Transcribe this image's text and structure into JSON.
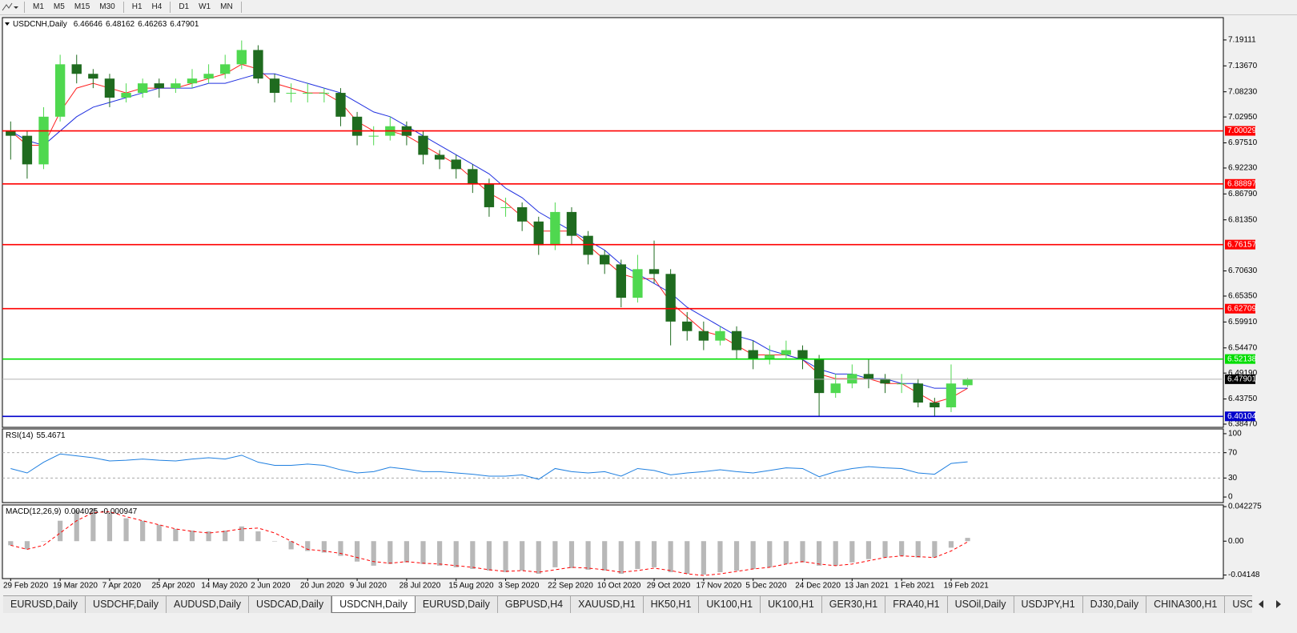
{
  "toolbar": {
    "timeframes": [
      "M1",
      "M5",
      "M15",
      "M30",
      "H1",
      "H4",
      "D1",
      "W1",
      "MN"
    ]
  },
  "chart_data": [
    {
      "type": "candlestick",
      "title": "USDCNH,Daily",
      "categories": [
        "29 Feb 2020",
        null,
        null,
        "19 Mar 2020",
        null,
        null,
        "7 Apr 2020",
        null,
        null,
        "25 Apr 2020",
        null,
        null,
        "14 May 2020",
        null,
        null,
        "2 Jun 2020",
        null,
        null,
        "20 Jun 2020",
        null,
        null,
        "9 Jul 2020",
        null,
        null,
        "28 Jul 2020",
        null,
        null,
        "15 Aug 2020",
        null,
        null,
        "3 Sep 2020",
        null,
        null,
        "22 Sep 2020",
        null,
        null,
        "10 Oct 2020",
        null,
        null,
        "29 Oct 2020",
        null,
        null,
        "17 Nov 2020",
        null,
        null,
        "5 Dec 2020",
        null,
        null,
        "24 Dec 2020",
        null,
        null,
        "13 Jan 2021",
        null,
        null,
        "1 Feb 2021",
        null,
        null,
        "19 Feb 2021",
        null
      ],
      "open": [
        7.0,
        6.99,
        6.93,
        7.03,
        7.14,
        7.12,
        7.11,
        7.07,
        7.08,
        7.1,
        7.09,
        7.1,
        7.11,
        7.12,
        7.14,
        7.17,
        7.11,
        7.08,
        7.08,
        7.08,
        7.08,
        7.03,
        6.99,
        6.99,
        7.01,
        6.99,
        6.95,
        6.94,
        6.92,
        6.89,
        6.84,
        6.84,
        6.81,
        6.76,
        6.83,
        6.78,
        6.74,
        6.72,
        6.65,
        6.71,
        6.7,
        6.6,
        6.58,
        6.56,
        6.58,
        6.54,
        6.52,
        6.53,
        6.54,
        6.52,
        6.45,
        6.47,
        6.49,
        6.48,
        6.47,
        6.47,
        6.43,
        6.42,
        6.46646
      ],
      "high": [
        7.02,
        7.0,
        7.05,
        7.16,
        7.16,
        7.13,
        7.12,
        7.1,
        7.11,
        7.11,
        7.11,
        7.13,
        7.14,
        7.16,
        7.19,
        7.18,
        7.12,
        7.1,
        7.1,
        7.09,
        7.09,
        7.04,
        7.01,
        7.03,
        7.02,
        7.0,
        6.96,
        6.95,
        6.93,
        6.9,
        6.86,
        6.85,
        6.82,
        6.85,
        6.84,
        6.79,
        6.75,
        6.73,
        6.74,
        6.77,
        6.71,
        6.62,
        6.6,
        6.59,
        6.59,
        6.56,
        6.55,
        6.56,
        6.55,
        6.53,
        6.49,
        6.51,
        6.52,
        6.49,
        6.49,
        6.48,
        6.44,
        6.51,
        6.48162
      ],
      "low": [
        6.94,
        6.9,
        6.92,
        7.02,
        7.1,
        7.09,
        7.05,
        7.06,
        7.07,
        7.07,
        7.08,
        7.09,
        7.1,
        7.11,
        7.13,
        7.1,
        7.06,
        7.06,
        7.06,
        7.06,
        7.01,
        6.97,
        6.97,
        6.98,
        6.97,
        6.93,
        6.92,
        6.9,
        6.87,
        6.82,
        6.82,
        6.79,
        6.74,
        6.75,
        6.76,
        6.72,
        6.7,
        6.63,
        6.64,
        6.68,
        6.55,
        6.56,
        6.54,
        6.55,
        6.52,
        6.5,
        6.51,
        6.52,
        6.5,
        6.4,
        6.44,
        6.46,
        6.46,
        6.45,
        6.45,
        6.42,
        6.4,
        6.41,
        6.46263
      ],
      "close": [
        6.99,
        6.93,
        7.03,
        7.14,
        7.12,
        7.11,
        7.07,
        7.08,
        7.1,
        7.09,
        7.1,
        7.11,
        7.12,
        7.14,
        7.17,
        7.11,
        7.08,
        7.08,
        7.08,
        7.08,
        7.03,
        6.99,
        6.99,
        7.01,
        6.99,
        6.95,
        6.94,
        6.92,
        6.89,
        6.84,
        6.84,
        6.81,
        6.76,
        6.83,
        6.78,
        6.74,
        6.72,
        6.65,
        6.71,
        6.7,
        6.6,
        6.58,
        6.56,
        6.58,
        6.54,
        6.52,
        6.53,
        6.54,
        6.52,
        6.45,
        6.47,
        6.49,
        6.48,
        6.47,
        6.47,
        6.43,
        6.42,
        6.47,
        6.47901
      ],
      "up_color": "#4fd84f",
      "down_color": "#1f6b1f",
      "lines": [
        {
          "color": "#ff2020",
          "values": [
            7.0,
            6.97,
            6.97,
            7.04,
            7.09,
            7.1,
            7.09,
            7.08,
            7.09,
            7.09,
            7.09,
            7.1,
            7.11,
            7.12,
            7.14,
            7.13,
            7.1,
            7.09,
            7.08,
            7.08,
            7.06,
            7.02,
            7.0,
            7.0,
            6.99,
            6.97,
            6.95,
            6.93,
            6.9,
            6.87,
            6.85,
            6.82,
            6.79,
            6.79,
            6.79,
            6.76,
            6.73,
            6.7,
            6.69,
            6.69,
            6.64,
            6.61,
            6.58,
            6.57,
            6.55,
            6.53,
            6.53,
            6.53,
            6.52,
            6.49,
            6.48,
            6.48,
            6.48,
            6.47,
            6.47,
            6.45,
            6.43,
            6.44,
            6.46
          ]
        },
        {
          "color": "#2030e0",
          "values": [
            7.0,
            6.98,
            6.97,
            7.0,
            7.03,
            7.05,
            7.06,
            7.07,
            7.08,
            7.09,
            7.09,
            7.09,
            7.1,
            7.1,
            7.11,
            7.12,
            7.12,
            7.11,
            7.1,
            7.09,
            7.08,
            7.06,
            7.04,
            7.03,
            7.01,
            6.99,
            6.97,
            6.95,
            6.93,
            6.91,
            6.88,
            6.86,
            6.83,
            6.81,
            6.79,
            6.77,
            6.75,
            6.72,
            6.7,
            6.68,
            6.66,
            6.63,
            6.61,
            6.59,
            6.57,
            6.56,
            6.54,
            6.53,
            6.52,
            6.5,
            6.49,
            6.49,
            6.48,
            6.48,
            6.47,
            6.47,
            6.46,
            6.46,
            6.46
          ]
        }
      ],
      "levels": [
        {
          "value": 7.00029,
          "color": "#ff0000"
        },
        {
          "value": 6.88897,
          "color": "#ff0000"
        },
        {
          "value": 6.76157,
          "color": "#ff0000"
        },
        {
          "value": 6.62709,
          "color": "#ff0000"
        },
        {
          "value": 6.52138,
          "color": "#00dd00"
        },
        {
          "value": 6.40104,
          "color": "#0000cc"
        }
      ],
      "ylim": [
        6.378,
        7.238
      ],
      "yticks": [
        7.19111,
        {
          "value": 7.1367,
          "label": "7.13670"
        },
        {
          "value": 7.0823,
          "label": "7.08230"
        },
        {
          "value": 7.0295,
          "label": "7.02950"
        },
        {
          "value": 6.9751,
          "label": "6.97510"
        },
        {
          "value": 6.9223,
          "label": "6.92230"
        },
        {
          "value": 6.8679,
          "label": "6.86790"
        },
        {
          "value": 6.8135,
          "label": "6.81350"
        },
        {
          "value": 6.7063,
          "label": "6.70630"
        },
        {
          "value": 6.6535,
          "label": "6.65350"
        },
        {
          "value": 6.5991,
          "label": "6.59910"
        },
        {
          "value": 6.5447,
          "label": "6.54470"
        },
        {
          "value": 6.4919,
          "label": "6.49190"
        },
        {
          "value": 6.4375,
          "label": "6.43750"
        },
        {
          "value": 6.3847,
          "label": "6.38470"
        }
      ]
    },
    {
      "type": "line",
      "title": "RSI(14)",
      "color": "#1e7fe0",
      "values": [
        45,
        38,
        55,
        68,
        65,
        62,
        57,
        58,
        60,
        58,
        57,
        60,
        62,
        60,
        66,
        55,
        50,
        50,
        52,
        50,
        43,
        38,
        40,
        47,
        44,
        40,
        40,
        38,
        36,
        33,
        33,
        35,
        28,
        45,
        40,
        38,
        40,
        33,
        45,
        42,
        35,
        38,
        40,
        43,
        40,
        38,
        42,
        46,
        45,
        32,
        40,
        45,
        48,
        46,
        45,
        38,
        36,
        53,
        55.4671
      ],
      "ylim": [
        -8.75,
        107.5
      ],
      "yticks": [
        100,
        70,
        30,
        0
      ],
      "levels": [
        70,
        30
      ]
    },
    {
      "type": "macd",
      "title": "MACD(12,26,9)",
      "color": "#b8b8b8",
      "signal_color": "#ff0000",
      "values": [
        -0.005,
        -0.01,
        0.0,
        0.025,
        0.038,
        0.04,
        0.035,
        0.028,
        0.025,
        0.02,
        0.015,
        0.013,
        0.012,
        0.013,
        0.018,
        0.012,
        0.0,
        -0.01,
        -0.012,
        -0.014,
        -0.018,
        -0.025,
        -0.03,
        -0.028,
        -0.026,
        -0.028,
        -0.03,
        -0.032,
        -0.034,
        -0.036,
        -0.038,
        -0.036,
        -0.04,
        -0.032,
        -0.033,
        -0.035,
        -0.036,
        -0.04,
        -0.034,
        -0.032,
        -0.038,
        -0.04,
        -0.041,
        -0.038,
        -0.036,
        -0.034,
        -0.032,
        -0.028,
        -0.026,
        -0.03,
        -0.03,
        -0.026,
        -0.022,
        -0.02,
        -0.018,
        -0.02,
        -0.02,
        -0.008,
        0.004025
      ],
      "signal": [
        -0.005,
        -0.01,
        -0.005,
        0.01,
        0.025,
        0.035,
        0.036,
        0.03,
        0.025,
        0.02,
        0.015,
        0.012,
        0.01,
        0.012,
        0.015,
        0.016,
        0.01,
        0.0,
        -0.01,
        -0.012,
        -0.015,
        -0.02,
        -0.025,
        -0.027,
        -0.025,
        -0.027,
        -0.028,
        -0.03,
        -0.032,
        -0.035,
        -0.037,
        -0.036,
        -0.038,
        -0.035,
        -0.032,
        -0.033,
        -0.035,
        -0.038,
        -0.036,
        -0.033,
        -0.036,
        -0.04,
        -0.042,
        -0.04,
        -0.037,
        -0.034,
        -0.032,
        -0.028,
        -0.025,
        -0.028,
        -0.03,
        -0.028,
        -0.024,
        -0.02,
        -0.018,
        -0.019,
        -0.02,
        -0.012,
        -0.000947
      ],
      "ylim": [
        -0.0458,
        0.0443
      ],
      "yticks": [
        0.042275,
        {
          "value": 0,
          "label": "0.00"
        },
        -0.04148
      ]
    }
  ],
  "tabs": {
    "items": [
      "EURUSD,Daily",
      "USDCHF,Daily",
      "AUDUSD,Daily",
      "USDCAD,Daily",
      "USDCNH,Daily",
      "EURUSD,Daily",
      "GBPUSD,H4",
      "XAUUSD,H1",
      "HK50,H1",
      "UK100,H1",
      "UK100,H1",
      "GER30,H1",
      "FRA40,H1",
      "USOil,Daily",
      "USDJPY,H1",
      "DJ30,Daily",
      "CHINA300,H1",
      "USOil,"
    ],
    "active": 4
  }
}
